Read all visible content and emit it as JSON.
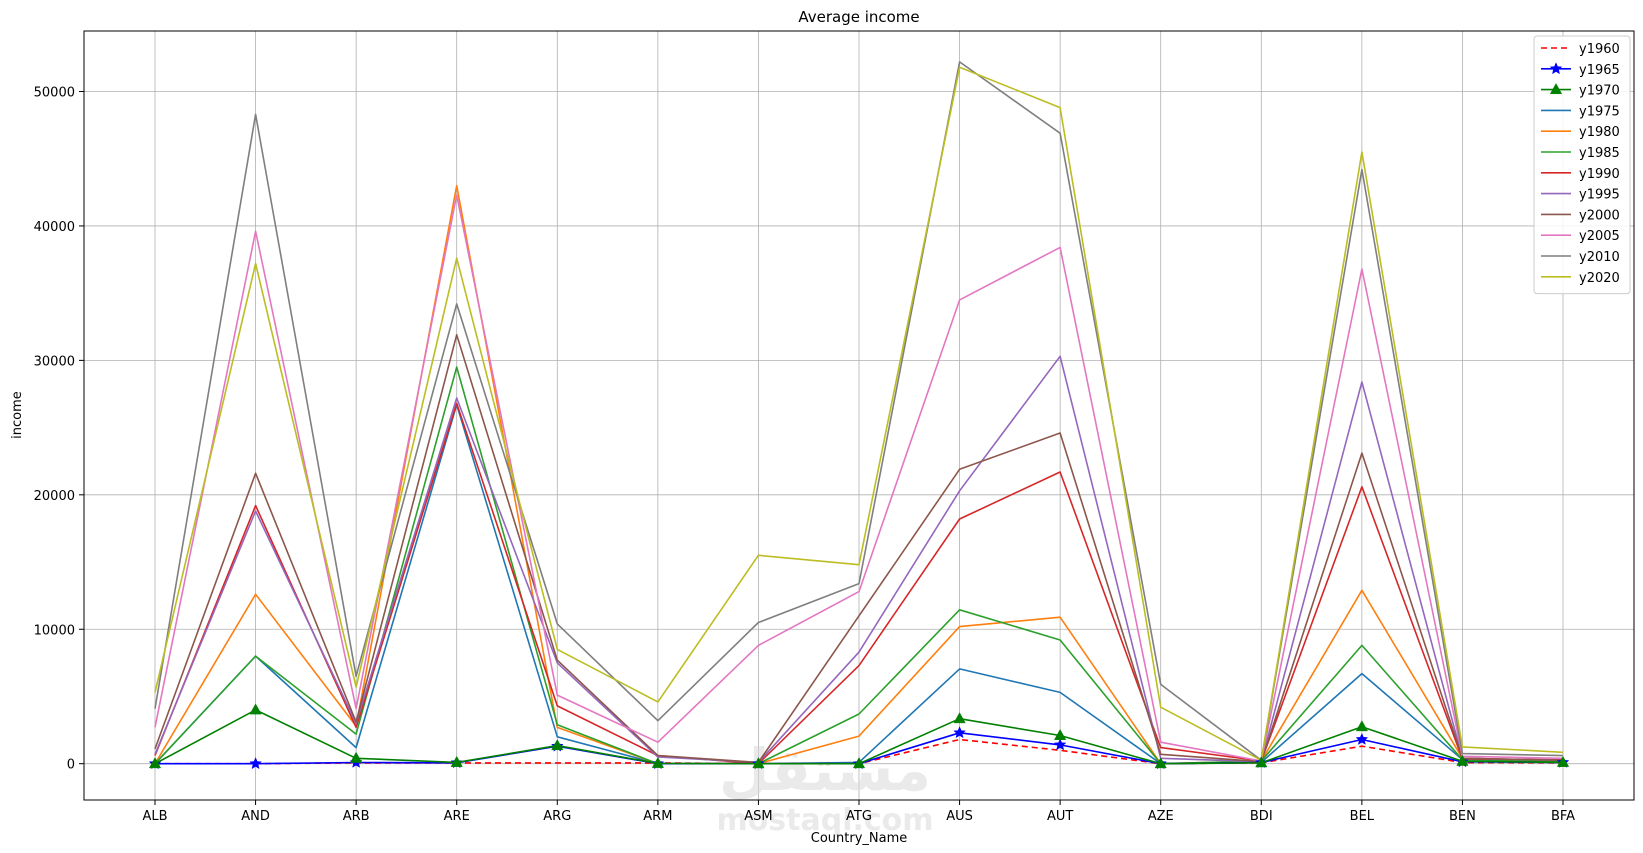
{
  "watermark": {
    "arabic": "مستقل",
    "latin": "mostaql.com"
  },
  "chart_data": {
    "type": "line",
    "title": "Average income",
    "xlabel": "Country_Name",
    "ylabel": "income",
    "categories": [
      "ALB",
      "AND",
      "ARB",
      "ARE",
      "ARG",
      "ARM",
      "ASM",
      "ATG",
      "AUS",
      "AUT",
      "AZE",
      "BDI",
      "BEL",
      "BEN",
      "BFA"
    ],
    "yticks": [
      0,
      10000,
      20000,
      30000,
      40000,
      50000
    ],
    "ylim": [
      -2700,
      54500
    ],
    "grid": true,
    "legend_position": "top-right",
    "series": [
      {
        "name": "y1960",
        "color": "#ff0000",
        "dash": "dashed",
        "marker": "none",
        "values": [
          0,
          0,
          60,
          60,
          60,
          60,
          0,
          0,
          1800,
          1000,
          0,
          70,
          1300,
          90,
          70
        ]
      },
      {
        "name": "y1965",
        "color": "#0000ff",
        "dash": "solid",
        "marker": "star",
        "values": [
          0,
          0,
          90,
          70,
          1300,
          0,
          0,
          0,
          2300,
          1400,
          0,
          80,
          1800,
          140,
          90
        ]
      },
      {
        "name": "y1970",
        "color": "#008000",
        "dash": "solid",
        "marker": "triangle",
        "values": [
          0,
          4000,
          400,
          100,
          1350,
          20,
          0,
          0,
          3350,
          2100,
          0,
          70,
          2750,
          180,
          100
        ]
      },
      {
        "name": "y1975",
        "color": "#1f77b4",
        "dash": "solid",
        "marker": "none",
        "values": [
          0,
          8000,
          1200,
          26700,
          2000,
          0,
          0,
          100,
          7050,
          5300,
          0,
          100,
          6700,
          300,
          150
        ]
      },
      {
        "name": "y1980",
        "color": "#ff7f0e",
        "dash": "solid",
        "marker": "none",
        "values": [
          0,
          12600,
          2800,
          43000,
          2700,
          0,
          0,
          2050,
          10200,
          10900,
          0,
          200,
          12900,
          400,
          250
        ]
      },
      {
        "name": "y1985",
        "color": "#2ca02c",
        "dash": "solid",
        "marker": "none",
        "values": [
          0,
          8000,
          2200,
          29500,
          2900,
          0,
          0,
          3700,
          11450,
          9200,
          0,
          200,
          8800,
          300,
          200
        ]
      },
      {
        "name": "y1990",
        "color": "#d62728",
        "dash": "solid",
        "marker": "none",
        "values": [
          600,
          19200,
          2700,
          26800,
          4300,
          600,
          0,
          7300,
          18200,
          21700,
          1200,
          200,
          20600,
          350,
          300
        ]
      },
      {
        "name": "y1995",
        "color": "#9467bd",
        "dash": "solid",
        "marker": "none",
        "values": [
          700,
          18800,
          3000,
          27200,
          7500,
          500,
          100,
          8300,
          20300,
          30300,
          400,
          150,
          28400,
          400,
          250
        ]
      },
      {
        "name": "y2000",
        "color": "#8c564b",
        "dash": "solid",
        "marker": "none",
        "values": [
          1100,
          21600,
          3100,
          31900,
          7700,
          600,
          100,
          11000,
          21900,
          24600,
          700,
          150,
          23100,
          400,
          250
        ]
      },
      {
        "name": "y2005",
        "color": "#e377c2",
        "dash": "solid",
        "marker": "none",
        "values": [
          2700,
          39600,
          4100,
          42300,
          5100,
          1600,
          8800,
          12800,
          34500,
          38400,
          1600,
          200,
          36800,
          550,
          400
        ]
      },
      {
        "name": "y2010",
        "color": "#7f7f7f",
        "dash": "solid",
        "marker": "none",
        "values": [
          4100,
          48300,
          6500,
          34200,
          10400,
          3200,
          10500,
          13400,
          52200,
          46900,
          5900,
          250,
          44200,
          750,
          600
        ]
      },
      {
        "name": "y2020",
        "color": "#bcbd22",
        "dash": "solid",
        "marker": "none",
        "values": [
          5300,
          37200,
          5700,
          37600,
          8500,
          4600,
          15500,
          14800,
          51800,
          48800,
          4200,
          250,
          45500,
          1250,
          850
        ]
      }
    ]
  }
}
